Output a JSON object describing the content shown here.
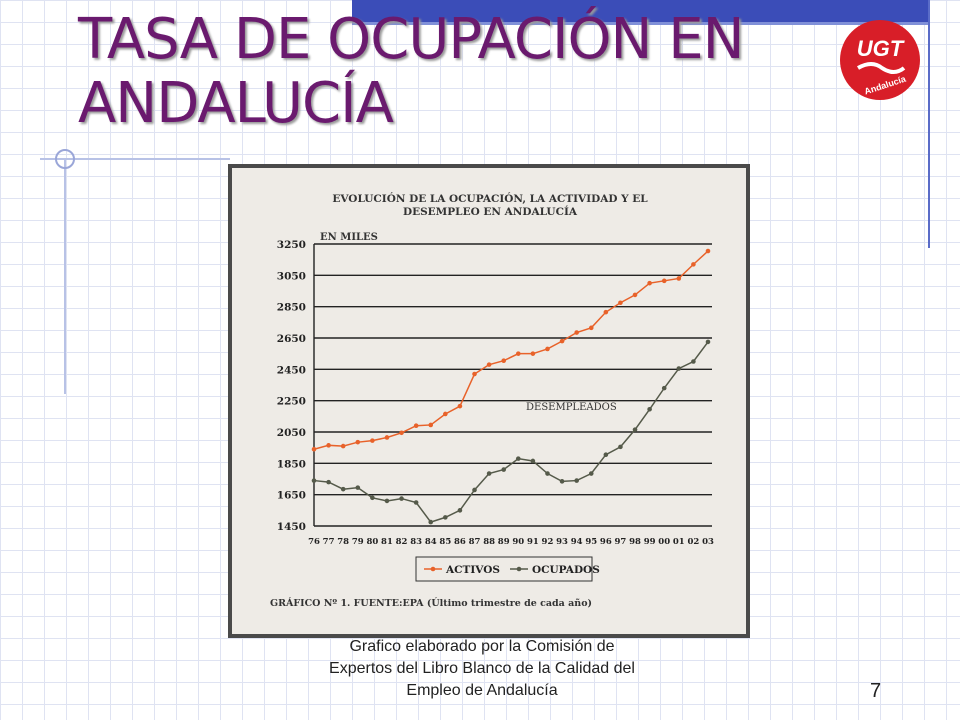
{
  "slide": {
    "title": "TASA DE OCUPACIÓN EN ANDALUCÍA",
    "caption": "Grafico elaborado por la Comisión de Expertos del Libro Blanco de la Calidad del Empleo de Andalucía",
    "page_number": "7",
    "logo": {
      "text": "UGT",
      "subtext": "Andalucía",
      "color": "#d81e28"
    }
  },
  "chart_data": {
    "type": "line",
    "title": "EVOLUCIÓN DE LA OCUPACIÓN, LA ACTIVIDAD Y EL DESEMPLEO EN ANDALUCÍA",
    "unit_label": "EN MILES",
    "annotation": "DESEMPLEADOS",
    "footer": "GRÁFICO Nº 1. FUENTE:EPA (Último trimestre de cada año)",
    "x": [
      "76",
      "77",
      "78",
      "79",
      "80",
      "81",
      "82",
      "83",
      "84",
      "85",
      "86",
      "87",
      "88",
      "89",
      "90",
      "91",
      "92",
      "93",
      "94",
      "95",
      "96",
      "97",
      "98",
      "99",
      "00",
      "01",
      "02",
      "03"
    ],
    "ylim": [
      1450,
      3250
    ],
    "yticks": [
      1450,
      1650,
      1850,
      2050,
      2250,
      2450,
      2650,
      2850,
      3050,
      3250
    ],
    "grid": true,
    "legend_position": "bottom",
    "series": [
      {
        "name": "ACTIVOS",
        "color": "#e8622a",
        "values": [
          1940,
          1965,
          1960,
          1985,
          1995,
          2015,
          2045,
          2090,
          2095,
          2165,
          2215,
          2420,
          2480,
          2505,
          2550,
          2550,
          2580,
          2630,
          2685,
          2715,
          2815,
          2875,
          2925,
          3000,
          3015,
          3030,
          3120,
          3205
        ]
      },
      {
        "name": "OCUPADOS",
        "color": "#555a4a",
        "values": [
          1740,
          1730,
          1685,
          1695,
          1630,
          1610,
          1625,
          1600,
          1475,
          1505,
          1550,
          1680,
          1785,
          1810,
          1880,
          1865,
          1785,
          1735,
          1740,
          1785,
          1905,
          1955,
          2065,
          2195,
          2330,
          2455,
          2500,
          2625
        ]
      }
    ]
  }
}
